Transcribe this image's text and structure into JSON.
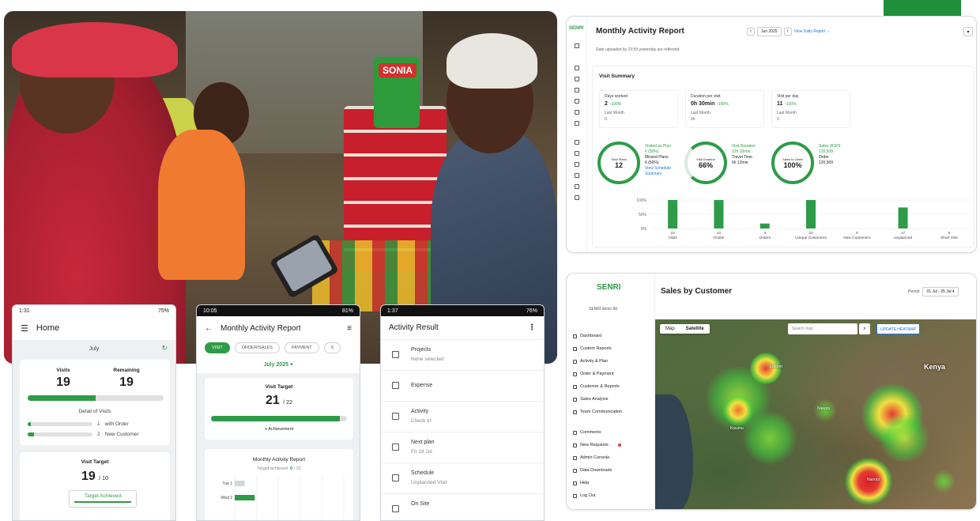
{
  "branding": {
    "logo": "SENRI",
    "brand_color": "#1f8f3b"
  },
  "monthly_report": {
    "title": "Monthly Activity Report",
    "month": "Jun 2025",
    "view_daily": "View Daily Report",
    "updated_note": "Date uploaded by 23:59 yesterday are reflected.",
    "summary_title": "Visit Summary",
    "stats": [
      {
        "label": "Days worked",
        "value": "2",
        "delta": "↑100%",
        "last_label": "Last Month",
        "last_value": "0"
      },
      {
        "label": "Duration per visit",
        "value": "0h 30min",
        "delta": "↑100%",
        "last_label": "Last Month",
        "last_value": "0h"
      },
      {
        "label": "Visit per day",
        "value": "11",
        "delta": "↑100%",
        "last_label": "Last Month",
        "last_value": "0"
      }
    ],
    "rings": [
      {
        "label": "Total Plans",
        "value": "12",
        "info": [
          "Visited as Plan",
          "6 (50%)",
          "Missed Plans",
          "6 (50%)",
          "View Schedule",
          "Summary"
        ]
      },
      {
        "label": "Visit Duration",
        "value": "66%",
        "info": [
          "Visit Duration",
          "12h 20min",
          "Travel Time",
          "6h 12min"
        ]
      },
      {
        "label": "Sales to Order",
        "value": "100%",
        "info": [
          "Sales (KSH)",
          "120,509",
          "Order",
          "120,509"
        ]
      }
    ],
    "chart_data": {
      "type": "bar",
      "categories": [
        "Visits",
        "Onsite",
        "Orders",
        "Unique Customers",
        "New Customers",
        "Unplanned",
        "Short Visit"
      ],
      "values": [
        23,
        23,
        4,
        23,
        0,
        17,
        0
      ],
      "yticks": [
        "100%",
        "50%",
        "0%"
      ]
    }
  },
  "sales": {
    "org": "SENRI demo ltd.",
    "title": "Sales by Customer",
    "period_label": "Period",
    "period_value": "01 Jul - 25 Jul",
    "map_tabs": [
      "Map",
      "Satellite"
    ],
    "search_placeholder": "Search map",
    "update_button": "UPDATE HEATMAP",
    "country_label": "Kenya",
    "city_labels": [
      "Eldoret",
      "Nakuru",
      "Nairobi",
      "Kisumu"
    ],
    "nav": [
      "Dashboard",
      "Custom Reports",
      "Activity & Plan",
      "Order & Payment",
      "Customer & Reports",
      "Sales Analysis",
      "Team Communication",
      "Comments",
      "New Requests",
      "Admin Console",
      "Data Downloads",
      "Help",
      "Log Out"
    ]
  },
  "home_phone": {
    "time": "1:31",
    "battery": "75%",
    "title": "Home",
    "month": "July",
    "visits_label": "Visits",
    "visits_value": "19",
    "remaining_label": "Remaining",
    "remaining_value": "19",
    "progress": 0.5,
    "detail_title": "Detail of Visits",
    "details": [
      {
        "count": "1",
        "label": "with Order"
      },
      {
        "count": "2",
        "label": "New Customer"
      }
    ],
    "target_label": "Visit Target",
    "target_value": "19",
    "target_of": "/ 10",
    "achieved": "Target Achieved"
  },
  "mar_phone": {
    "time": "10:05",
    "battery": "81%",
    "title": "Monthly Activity Report",
    "chips": [
      "VISIT",
      "ORDER/SALES",
      "PAYMENT",
      "S"
    ],
    "month": "July 2025",
    "target_label": "Visit Target",
    "target_value": "21",
    "target_of": "/ 22",
    "progress": 0.95,
    "achievement": "Achievement",
    "chart_title": "Monthly Activity Report",
    "target_achieved_label": "Target achieved",
    "target_achieved_value": "6",
    "target_achieved_of": "/ 22",
    "rows": [
      {
        "label": "Tue 1",
        "value": 1
      },
      {
        "label": "Wed 2",
        "value": 2
      }
    ]
  },
  "act_phone": {
    "time": "1:37",
    "battery": "76%",
    "title": "Activity Result",
    "items": [
      {
        "title": "Projects",
        "sub": "None selected",
        "icon": "table-icon"
      },
      {
        "title": "Expense",
        "sub": "",
        "icon": "cash-icon"
      },
      {
        "title": "Activity",
        "sub": "Check In",
        "icon": "doc-icon"
      },
      {
        "title": "Next plan",
        "sub": "Fri 18 Jul",
        "icon": "calendar-icon"
      },
      {
        "title": "Schedule",
        "sub": "Unplanned Visit",
        "icon": "calendar-icon"
      },
      {
        "title": "On Site",
        "sub": "",
        "icon": "pin-icon"
      }
    ]
  }
}
